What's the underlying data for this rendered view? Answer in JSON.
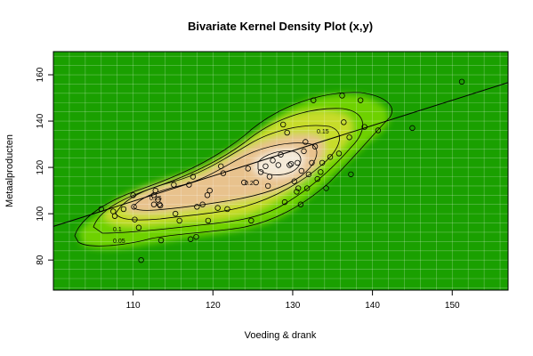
{
  "chart_data": {
    "type": "scatter",
    "title": "Bivariate Kernel Density Plot (x,y)",
    "xlabel": "Voeding & drank",
    "ylabel": "Metaalproducten",
    "xlim": [
      100,
      157
    ],
    "ylim": [
      67,
      170
    ],
    "x_ticks": [
      110,
      120,
      130,
      140,
      150
    ],
    "y_ticks": [
      80,
      100,
      120,
      140,
      160
    ],
    "grid": true,
    "contour_levels": [
      "0.05",
      "0.1",
      "0.15",
      "0.2",
      "0.25"
    ],
    "regression_line": {
      "intercept": -14.5,
      "slope": 1.09
    },
    "points": [
      [
        106,
        102
      ],
      [
        107.5,
        101
      ],
      [
        107.7,
        99
      ],
      [
        108.8,
        102
      ],
      [
        110,
        108
      ],
      [
        110.1,
        103
      ],
      [
        110.2,
        97.5
      ],
      [
        110.7,
        94
      ],
      [
        111,
        80
      ],
      [
        112.6,
        108
      ],
      [
        112.6,
        104
      ],
      [
        112.8,
        110
      ],
      [
        113.1,
        106
      ],
      [
        113.3,
        104
      ],
      [
        113.4,
        103.5
      ],
      [
        113.5,
        88.5
      ],
      [
        115.1,
        112.5
      ],
      [
        115.3,
        100
      ],
      [
        115.8,
        97
      ],
      [
        117,
        112.5
      ],
      [
        117.2,
        89
      ],
      [
        117.5,
        116
      ],
      [
        117.9,
        90
      ],
      [
        118,
        103
      ],
      [
        118.7,
        104
      ],
      [
        119.3,
        108
      ],
      [
        119.4,
        97
      ],
      [
        119.6,
        110
      ],
      [
        120.6,
        102.5
      ],
      [
        121,
        120.5
      ],
      [
        121.3,
        117.5
      ],
      [
        121.8,
        102
      ],
      [
        123.9,
        113.5
      ],
      [
        124.4,
        119.5
      ],
      [
        124.8,
        97
      ],
      [
        125.4,
        113.5
      ],
      [
        126,
        118
      ],
      [
        126.6,
        120.5
      ],
      [
        126.9,
        112
      ],
      [
        127.1,
        116
      ],
      [
        127.5,
        123
      ],
      [
        128.2,
        121
      ],
      [
        128.5,
        125.5
      ],
      [
        128.8,
        138.5
      ],
      [
        129,
        105
      ],
      [
        129.3,
        135
      ],
      [
        129.6,
        121
      ],
      [
        129.8,
        121.5
      ],
      [
        130.2,
        114
      ],
      [
        130.5,
        109.5
      ],
      [
        130.6,
        122
      ],
      [
        130.7,
        111
      ],
      [
        131,
        104
      ],
      [
        131.1,
        118.5
      ],
      [
        131.4,
        127
      ],
      [
        131.6,
        131
      ],
      [
        131.8,
        111
      ],
      [
        132,
        117
      ],
      [
        132.4,
        122
      ],
      [
        132.6,
        149
      ],
      [
        132.8,
        129
      ],
      [
        133.1,
        115
      ],
      [
        133.5,
        118
      ],
      [
        133.7,
        122
      ],
      [
        134.2,
        111
      ],
      [
        134.7,
        124.5
      ],
      [
        135.8,
        126
      ],
      [
        136.2,
        151
      ],
      [
        136.4,
        139.5
      ],
      [
        137.1,
        133
      ],
      [
        137.3,
        117
      ],
      [
        138.5,
        149
      ],
      [
        139,
        137.5
      ],
      [
        140.7,
        136
      ],
      [
        145,
        137
      ],
      [
        151.2,
        157
      ]
    ]
  }
}
